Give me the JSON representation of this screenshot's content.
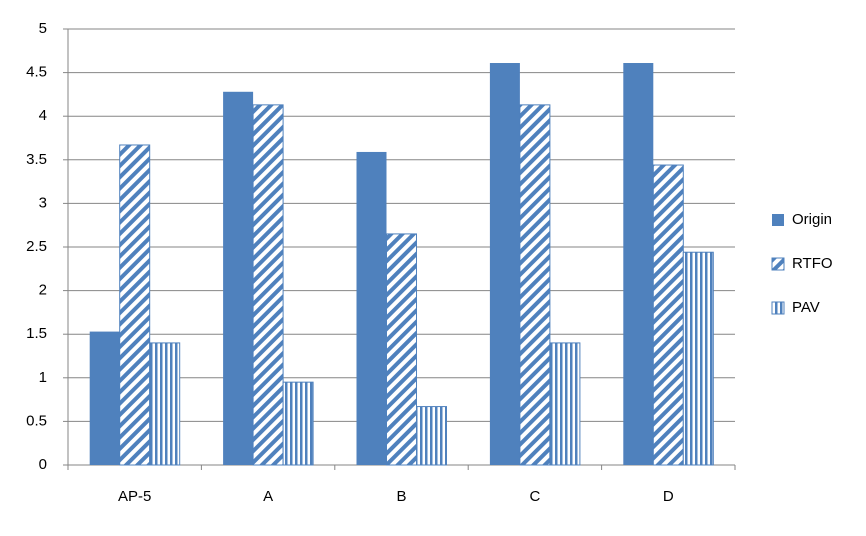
{
  "chart_data": {
    "type": "bar",
    "categories": [
      "AP-5",
      "A",
      "B",
      "C",
      "D"
    ],
    "series": [
      {
        "name": "Origin",
        "color": "#4f81bd",
        "pattern": "solid",
        "values": [
          1.53,
          4.28,
          3.59,
          4.61,
          4.61
        ]
      },
      {
        "name": "RTFO",
        "color": "#4f81bd",
        "pattern": "diagonal",
        "values": [
          3.67,
          4.13,
          2.65,
          4.13,
          3.44
        ]
      },
      {
        "name": "PAV",
        "color": "#4f81bd",
        "pattern": "vertical",
        "values": [
          1.4,
          0.95,
          0.67,
          1.4,
          2.44
        ]
      }
    ],
    "ylim": [
      0,
      5
    ],
    "yticks": [
      0,
      0.5,
      1,
      1.5,
      2,
      2.5,
      3,
      3.5,
      4,
      4.5,
      5
    ],
    "grid": true,
    "legend": "right"
  }
}
